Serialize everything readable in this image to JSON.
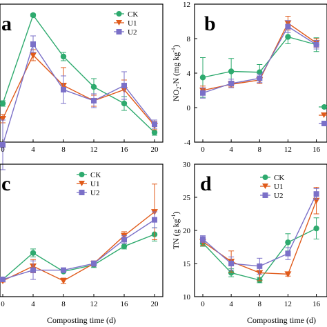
{
  "colors": {
    "CK": "#2eaa6e",
    "U1": "#e05a1a",
    "U2": "#7b70c8"
  },
  "chart_data": [
    {
      "panel": "a",
      "type": "line",
      "x": [
        0,
        4,
        8,
        12,
        16,
        20
      ],
      "xticks": [
        "0",
        "4",
        "8",
        "12",
        "16",
        "20"
      ],
      "yticks": [],
      "ylim": [
        0,
        1
      ],
      "xlabel": "",
      "ylabel": "",
      "legend_position": "top-right",
      "series": [
        {
          "name": "CK",
          "marker": "circle",
          "values": [
            0.28,
            0.92,
            0.62,
            0.4,
            0.28,
            0.07
          ],
          "err": [
            0.02,
            0.01,
            0.03,
            0.06,
            0.05,
            0.02
          ]
        },
        {
          "name": "U1",
          "marker": "triangle-down",
          "values": [
            0.17,
            0.63,
            0.41,
            0.3,
            0.38,
            0.12
          ],
          "err": [
            0.03,
            0.04,
            0.13,
            0.04,
            0.07,
            0.03
          ]
        },
        {
          "name": "U2",
          "marker": "square",
          "values": [
            -0.02,
            0.71,
            0.38,
            0.3,
            0.41,
            0.13
          ],
          "err": [
            0.18,
            0.06,
            0.1,
            0.05,
            0.1,
            0.03
          ]
        }
      ]
    },
    {
      "panel": "b",
      "type": "line",
      "x": [
        0,
        4,
        8,
        12,
        16
      ],
      "xticks": [
        "0",
        "4",
        "8",
        "12",
        "16"
      ],
      "yticks": [
        "-4",
        "0",
        "4",
        "8",
        "12"
      ],
      "ylim": [
        -4,
        12
      ],
      "xlabel": "",
      "ylabel": "NO2-N (mg kg-1)",
      "legend_position": "right",
      "series": [
        {
          "name": "CK",
          "marker": "circle",
          "values": [
            3.5,
            4.2,
            4.1,
            8.2,
            7.3
          ],
          "err": [
            2.3,
            1.5,
            0.9,
            0.8,
            0.8
          ]
        },
        {
          "name": "U1",
          "marker": "triangle-down",
          "values": [
            2.0,
            2.7,
            3.2,
            9.8,
            7.5
          ],
          "err": [
            0.5,
            0.3,
            0.4,
            0.8,
            0.5
          ]
        },
        {
          "name": "U2",
          "marker": "square",
          "values": [
            1.7,
            2.8,
            3.4,
            9.4,
            7.3
          ],
          "err": [
            0.6,
            0.5,
            0.5,
            0.7,
            0.5
          ]
        }
      ]
    },
    {
      "panel": "c",
      "type": "line",
      "x": [
        0,
        4,
        8,
        12,
        16,
        20
      ],
      "xticks": [
        "0",
        "4",
        "8",
        "12",
        "16",
        "20"
      ],
      "yticks": [],
      "ylim": [
        0,
        1
      ],
      "xlabel": "Composting time (d)",
      "ylabel": "",
      "legend_position": "top-right",
      "series": [
        {
          "name": "CK",
          "marker": "circle",
          "values": [
            0.13,
            0.33,
            0.19,
            0.24,
            0.38,
            0.47
          ],
          "err": [
            0.01,
            0.03,
            0.01,
            0.02,
            0.02,
            0.05
          ]
        },
        {
          "name": "U1",
          "marker": "triangle-down",
          "values": [
            0.12,
            0.23,
            0.12,
            0.25,
            0.46,
            0.64
          ],
          "err": [
            0.01,
            0.05,
            0.02,
            0.02,
            0.03,
            0.21
          ]
        },
        {
          "name": "U2",
          "marker": "square",
          "values": [
            0.13,
            0.2,
            0.2,
            0.25,
            0.43,
            0.58
          ],
          "err": [
            0.01,
            0.07,
            0.01,
            0.02,
            0.03,
            0.06
          ]
        }
      ]
    },
    {
      "panel": "d",
      "type": "line",
      "x": [
        0,
        4,
        8,
        12,
        16
      ],
      "xticks": [
        "0",
        "4",
        "8",
        "12",
        "16"
      ],
      "yticks": [
        "10",
        "15",
        "20",
        "25",
        "30"
      ],
      "ylim": [
        10,
        30
      ],
      "xlabel": "Composting time (d)",
      "ylabel": "TN (g kg-1)",
      "legend_position": "top-right",
      "series": [
        {
          "name": "CK",
          "marker": "circle",
          "values": [
            18.1,
            13.6,
            12.5,
            18.2,
            20.3
          ],
          "err": [
            0.5,
            0.6,
            0.4,
            1.3,
            1.6
          ]
        },
        {
          "name": "U1",
          "marker": "triangle-down",
          "values": [
            18.3,
            15.3,
            13.6,
            13.4,
            24.5
          ],
          "err": [
            0.6,
            1.6,
            1.2,
            0.3,
            2.0
          ]
        },
        {
          "name": "U2",
          "marker": "square",
          "values": [
            18.7,
            15.0,
            14.6,
            16.5,
            25.5
          ],
          "err": [
            0.5,
            1.0,
            1.2,
            0.9,
            0.8
          ]
        }
      ]
    }
  ],
  "panels": {
    "a": {
      "letter": "a",
      "legend": [
        "CK",
        "U1",
        "U2"
      ]
    },
    "b": {
      "letter": "b",
      "ylabel_main": "NO",
      "ylabel_sub": "2",
      "ylabel_tail": "-N (mg kg",
      "ylabel_sup": "-1",
      "ylabel_close": ")"
    },
    "c": {
      "letter": "c",
      "legend": [
        "CK",
        "U1",
        "U2"
      ],
      "xlabel": "Composting time (d)"
    },
    "d": {
      "letter": "d",
      "legend": [
        "CK",
        "U1",
        "U2"
      ],
      "xlabel": "Composting time (d)",
      "ylabel_main": "TN (g kg",
      "ylabel_sup": "-1",
      "ylabel_close": ")"
    }
  }
}
